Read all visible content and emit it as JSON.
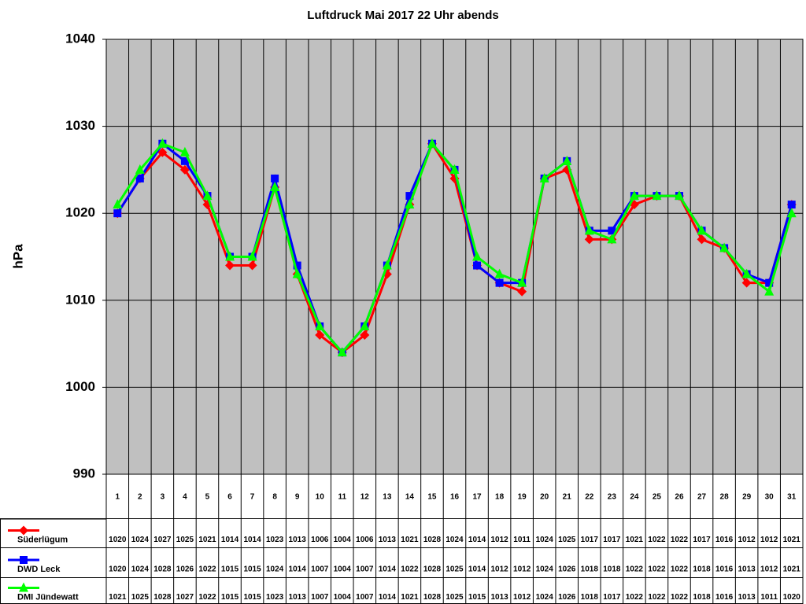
{
  "chart_data": {
    "type": "line",
    "title": "Luftdruck Mai 2017 22 Uhr abends",
    "y_label": "hPa",
    "categories": [
      "1",
      "2",
      "3",
      "4",
      "5",
      "6",
      "7",
      "8",
      "9",
      "10",
      "11",
      "12",
      "13",
      "14",
      "15",
      "16",
      "17",
      "18",
      "19",
      "20",
      "21",
      "22",
      "23",
      "24",
      "25",
      "26",
      "27",
      "28",
      "29",
      "30",
      "31"
    ],
    "series": [
      {
        "name": "Süderlügum",
        "color": "#ff0000",
        "marker": "diamond",
        "values": [
          1020,
          1024,
          1027,
          1025,
          1021,
          1014,
          1014,
          1023,
          1013,
          1006,
          1004,
          1006,
          1013,
          1021,
          1028,
          1024,
          1014,
          1012,
          1011,
          1024,
          1025,
          1017,
          1017,
          1021,
          1022,
          1022,
          1017,
          1016,
          1012,
          1012,
          1021
        ]
      },
      {
        "name": "DWD Leck",
        "color": "#0000ff",
        "marker": "square",
        "values": [
          1020,
          1024,
          1028,
          1026,
          1022,
          1015,
          1015,
          1024,
          1014,
          1007,
          1004,
          1007,
          1014,
          1022,
          1028,
          1025,
          1014,
          1012,
          1012,
          1024,
          1026,
          1018,
          1018,
          1022,
          1022,
          1022,
          1018,
          1016,
          1013,
          1012,
          1021
        ]
      },
      {
        "name": "DMI Jündewatt",
        "color": "#00ff00",
        "marker": "triangle",
        "values": [
          1021,
          1025,
          1028,
          1027,
          1022,
          1015,
          1015,
          1023,
          1013,
          1007,
          1004,
          1007,
          1014,
          1021,
          1028,
          1025,
          1015,
          1013,
          1012,
          1024,
          1026,
          1018,
          1017,
          1022,
          1022,
          1022,
          1018,
          1016,
          1013,
          1011,
          1020
        ]
      }
    ],
    "ylim": [
      990,
      1040
    ],
    "yticks": [
      990,
      1000,
      1010,
      1020,
      1030,
      1040
    ],
    "grid": true,
    "plot_background": "#c0c0c0"
  }
}
